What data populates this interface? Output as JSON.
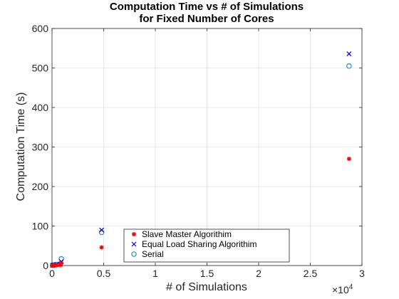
{
  "chart_data": {
    "type": "scatter",
    "title_lines": [
      "Computation Time vs # of Simulations",
      "for Fixed Number of Cores"
    ],
    "xlabel": "# of Simulations",
    "ylabel": "Computation Time (s)",
    "x_multiplier_label": "×10",
    "x_multiplier_exp": "4",
    "xlim": [
      0,
      3
    ],
    "ylim": [
      0,
      600
    ],
    "x_ticks": [
      0,
      0.5,
      1,
      1.5,
      2,
      2.5,
      3
    ],
    "x_tick_labels": [
      "0",
      "0.5",
      "1",
      "1.5",
      "2",
      "2.5",
      "3"
    ],
    "y_ticks": [
      0,
      100,
      200,
      300,
      400,
      500,
      600
    ],
    "y_tick_labels": [
      "0",
      "100",
      "200",
      "300",
      "400",
      "500",
      "600"
    ],
    "grid": true,
    "legend_position": "bottom-center",
    "series": [
      {
        "name": "Slave Master Algorithim",
        "marker": "asterisk",
        "color": "#ff0000",
        "points": [
          [
            0.005,
            0.3
          ],
          [
            0.01,
            0.5
          ],
          [
            0.02,
            0.8
          ],
          [
            0.04,
            1
          ],
          [
            0.08,
            1.5
          ],
          [
            0.09,
            7
          ],
          [
            0.48,
            46
          ],
          [
            2.875,
            270
          ]
        ]
      },
      {
        "name": "Equal Load Sharing Algorithim",
        "marker": "x",
        "color": "#0000ee",
        "points": [
          [
            0.005,
            0.5
          ],
          [
            0.01,
            1
          ],
          [
            0.02,
            1.5
          ],
          [
            0.04,
            2.5
          ],
          [
            0.08,
            4
          ],
          [
            0.09,
            10
          ],
          [
            0.48,
            90
          ],
          [
            2.875,
            536
          ]
        ]
      },
      {
        "name": "Serial",
        "marker": "circle",
        "color": "#1f8fd6",
        "points": [
          [
            0.005,
            0.5
          ],
          [
            0.01,
            1
          ],
          [
            0.02,
            1.5
          ],
          [
            0.04,
            2.5
          ],
          [
            0.08,
            4
          ],
          [
            0.09,
            17
          ],
          [
            0.48,
            84
          ],
          [
            2.875,
            505
          ]
        ]
      }
    ]
  }
}
